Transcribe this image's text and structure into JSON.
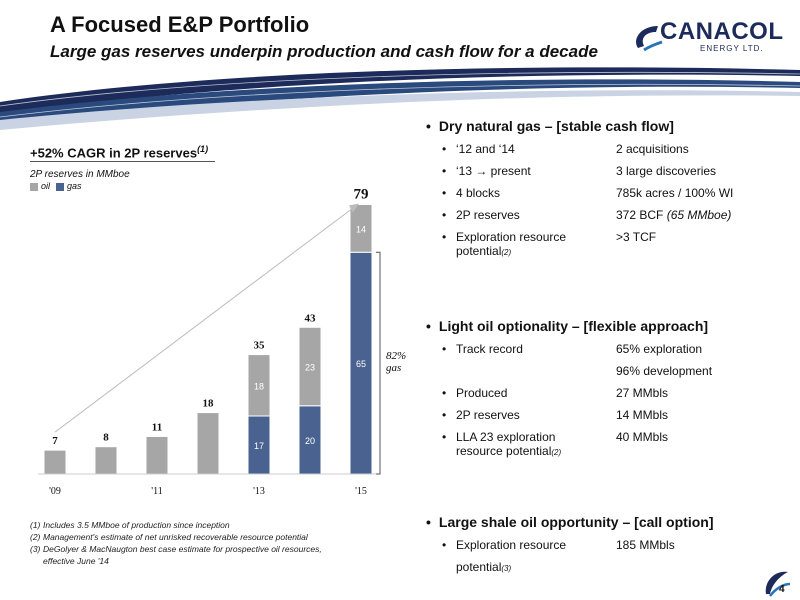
{
  "header": {
    "title": "A Focused E&P Portfolio",
    "subtitle": "Large gas reserves underpin production and cash flow for a decade",
    "logo_text": "CANACOL",
    "logo_sub": "ENERGY LTD."
  },
  "chart_data": {
    "type": "bar",
    "title": "+52% CAGR in 2P reserves",
    "title_note": "(1)",
    "units": "2P reserves in MMboe",
    "legend": [
      "oil",
      "gas"
    ],
    "categories": [
      "2009",
      "2010",
      "2011",
      "2012",
      "2013",
      "2014",
      "2015"
    ],
    "x_tick_labels": [
      "'09",
      "",
      "'11",
      "",
      "'13",
      "",
      "'15"
    ],
    "series": [
      {
        "name": "oil",
        "color": "#a6a6a6",
        "values": [
          7,
          8,
          11,
          18,
          18,
          23,
          14
        ]
      },
      {
        "name": "gas",
        "color": "#4a6290",
        "values": [
          0,
          0,
          0,
          0,
          17,
          20,
          65
        ]
      }
    ],
    "totals": [
      7,
      8,
      11,
      18,
      35,
      43,
      79
    ],
    "segment_labels": [
      {
        "category": "2013",
        "series": "oil",
        "text": "18"
      },
      {
        "category": "2013",
        "series": "gas",
        "text": "17"
      },
      {
        "category": "2014",
        "series": "oil",
        "text": "23"
      },
      {
        "category": "2014",
        "series": "gas",
        "text": "20"
      },
      {
        "category": "2015",
        "series": "oil",
        "text": "14"
      },
      {
        "category": "2015",
        "series": "gas",
        "text": "65"
      }
    ],
    "annotation": "82% gas",
    "ylim": [
      0,
      85
    ]
  },
  "footnotes": [
    {
      "num": "(1)",
      "text": "Includes 3.5 MMboe of production since inception"
    },
    {
      "num": "(2)",
      "text": "Management's estimate of net unrisked recoverable resource potential"
    },
    {
      "num": "(3)",
      "text": "DeGolyer & MacNaugton best case estimate for prospective oil resources,"
    },
    {
      "num": "",
      "text": "effective June '14"
    }
  ],
  "bullets": [
    {
      "heading": "Dry natural gas – [stable cash flow]",
      "items": [
        {
          "label": "‘12 and ‘14",
          "value": "2 acquisitions"
        },
        {
          "label": "‘13 → present",
          "value": "3 large discoveries"
        },
        {
          "label": "4 blocks",
          "value": "785k acres / 100% WI"
        },
        {
          "label": "2P reserves",
          "value": "372 BCF",
          "value_note": "(65 MMboe)"
        },
        {
          "label": "Exploration resource",
          "value": ">3 TCF",
          "label2": "potential",
          "label2_note": "(2)"
        }
      ]
    },
    {
      "heading": "Light oil optionality – [flexible approach]",
      "items": [
        {
          "label": "Track record",
          "value": "65% exploration",
          "value2": "96% development"
        },
        {
          "label": "Produced",
          "value": "27 MMbls"
        },
        {
          "label": "2P reserves",
          "value": "14 MMbls"
        },
        {
          "label": "LLA 23 exploration",
          "value": "40 MMbls",
          "label2": "resource potential",
          "label2_note": "(2)"
        }
      ]
    },
    {
      "heading": "Large shale oil opportunity – [call option]",
      "items": [
        {
          "label": "Exploration resource",
          "value": "185 MMbls",
          "label2": "potential",
          "label2_note": "(3)"
        }
      ]
    }
  ],
  "page_number": "4"
}
